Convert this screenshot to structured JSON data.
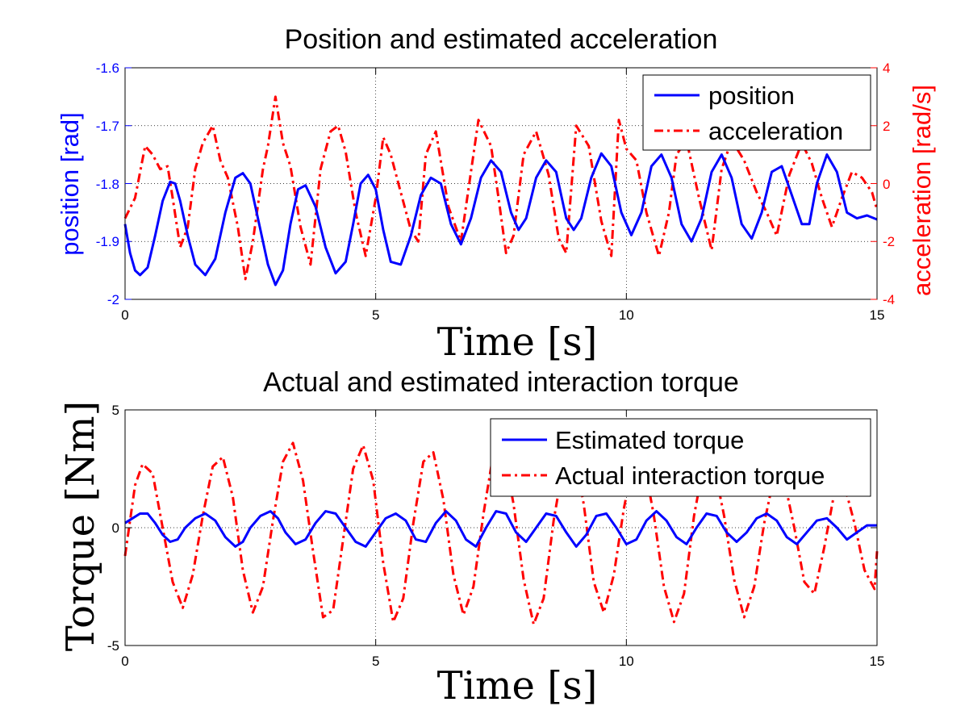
{
  "chart_data": [
    {
      "type": "line",
      "title": "Position and estimated acceleration",
      "xlabel": "Time [s]",
      "ylabel_left": "position [rad]",
      "ylabel_right": "acceleration [rad/s]",
      "xlim": [
        0,
        15
      ],
      "ylim_left": [
        -2,
        -1.6
      ],
      "ylim_right": [
        -4,
        4
      ],
      "xticks": [
        "0",
        "5",
        "10",
        "15"
      ],
      "yticks_left": [
        "-2",
        "-1.9",
        "-1.8",
        "-1.7",
        "-1.6"
      ],
      "yticks_right": [
        "-4",
        "-2",
        "0",
        "2",
        "4"
      ],
      "grid": true,
      "legend_position": "top-right",
      "series": [
        {
          "name": "position",
          "axis": "left",
          "color": "#0000ff",
          "style": "solid",
          "x": [
            0,
            0.1,
            0.2,
            0.3,
            0.45,
            0.6,
            0.75,
            0.9,
            1.0,
            1.1,
            1.25,
            1.4,
            1.6,
            1.8,
            2.0,
            2.2,
            2.35,
            2.5,
            2.7,
            2.85,
            3.0,
            3.15,
            3.3,
            3.45,
            3.6,
            3.8,
            4.0,
            4.2,
            4.4,
            4.55,
            4.7,
            4.85,
            5.0,
            5.15,
            5.3,
            5.5,
            5.7,
            5.9,
            6.1,
            6.3,
            6.5,
            6.7,
            6.9,
            7.1,
            7.3,
            7.5,
            7.7,
            7.85,
            8.0,
            8.2,
            8.4,
            8.6,
            8.8,
            8.95,
            9.1,
            9.3,
            9.5,
            9.7,
            9.9,
            10.1,
            10.3,
            10.5,
            10.7,
            10.9,
            11.1,
            11.3,
            11.5,
            11.7,
            11.9,
            12.1,
            12.3,
            12.5,
            12.7,
            12.9,
            13.1,
            13.3,
            13.5,
            13.65,
            13.8,
            14.0,
            14.2,
            14.4,
            14.6,
            14.8,
            15.0
          ],
          "y": [
            -1.87,
            -1.92,
            -1.95,
            -1.958,
            -1.945,
            -1.89,
            -1.83,
            -1.797,
            -1.8,
            -1.83,
            -1.89,
            -1.94,
            -1.958,
            -1.93,
            -1.85,
            -1.79,
            -1.782,
            -1.8,
            -1.88,
            -1.94,
            -1.975,
            -1.95,
            -1.87,
            -1.81,
            -1.803,
            -1.84,
            -1.91,
            -1.955,
            -1.935,
            -1.87,
            -1.8,
            -1.785,
            -1.81,
            -1.88,
            -1.935,
            -1.94,
            -1.89,
            -1.82,
            -1.79,
            -1.8,
            -1.87,
            -1.905,
            -1.86,
            -1.79,
            -1.76,
            -1.78,
            -1.85,
            -1.88,
            -1.86,
            -1.79,
            -1.76,
            -1.78,
            -1.86,
            -1.88,
            -1.86,
            -1.79,
            -1.748,
            -1.77,
            -1.85,
            -1.889,
            -1.85,
            -1.77,
            -1.75,
            -1.79,
            -1.87,
            -1.9,
            -1.86,
            -1.78,
            -1.75,
            -1.79,
            -1.87,
            -1.895,
            -1.85,
            -1.78,
            -1.77,
            -1.82,
            -1.87,
            -1.87,
            -1.8,
            -1.75,
            -1.78,
            -1.85,
            -1.86,
            -1.855,
            -1.862
          ]
        },
        {
          "name": "acceleration",
          "axis": "right",
          "color": "#ff0000",
          "style": "dash-dot",
          "x": [
            0,
            0.2,
            0.4,
            0.55,
            0.7,
            0.85,
            0.95,
            1.1,
            1.25,
            1.4,
            1.55,
            1.75,
            1.9,
            2.05,
            2.25,
            2.4,
            2.55,
            2.75,
            2.85,
            3.0,
            3.15,
            3.3,
            3.5,
            3.7,
            3.9,
            4.1,
            4.25,
            4.4,
            4.6,
            4.8,
            5.0,
            5.15,
            5.3,
            5.5,
            5.7,
            5.85,
            6.0,
            6.2,
            6.45,
            6.7,
            6.95,
            7.05,
            7.3,
            7.45,
            7.6,
            7.75,
            7.95,
            8.2,
            8.45,
            8.65,
            8.8,
            9.0,
            9.25,
            9.5,
            9.7,
            9.85,
            10.0,
            10.2,
            10.4,
            10.65,
            10.85,
            11.0,
            11.2,
            11.45,
            11.7,
            11.9,
            12.1,
            12.35,
            12.6,
            12.8,
            13.0,
            13.25,
            13.5,
            13.7,
            13.9,
            14.1,
            14.3,
            14.5,
            14.7,
            14.9,
            15.0
          ],
          "y": [
            -1.2,
            -0.5,
            1.3,
            1.0,
            0.5,
            0.6,
            -0.5,
            -2.2,
            -1.5,
            0.5,
            1.4,
            2.0,
            0.8,
            0.2,
            -1.5,
            -3.3,
            -2.0,
            0.5,
            1.3,
            3.0,
            1.4,
            0.6,
            -1.5,
            -2.8,
            0.5,
            1.8,
            2.0,
            1.1,
            -1.0,
            -2.5,
            -0.5,
            1.6,
            1.0,
            -0.3,
            -1.6,
            -2.0,
            1.0,
            1.8,
            -0.8,
            -2.0,
            1.0,
            2.2,
            1.3,
            -0.5,
            -2.4,
            -1.8,
            1.0,
            1.8,
            0.3,
            -1.9,
            -2.4,
            2.0,
            1.3,
            -1.3,
            -2.5,
            2.2,
            1.2,
            0.8,
            -1.0,
            -2.5,
            -1.0,
            1.0,
            1.5,
            -0.5,
            -2.3,
            0.5,
            1.5,
            0.8,
            -0.3,
            -1.0,
            -1.8,
            0.3,
            1.4,
            0.7,
            -0.5,
            -1.5,
            -0.5,
            0.4,
            0.2,
            -0.3,
            -0.9
          ]
        }
      ]
    },
    {
      "type": "line",
      "title": "Actual and estimated interaction torque",
      "xlabel": "Time [s]",
      "ylabel": "Torque [Nm]",
      "xlim": [
        0,
        15
      ],
      "ylim": [
        -5,
        5
      ],
      "xticks": [
        "0",
        "5",
        "10",
        "15"
      ],
      "yticks": [
        "-5",
        "0",
        "5"
      ],
      "grid": true,
      "legend_position": "top-right",
      "series": [
        {
          "name": "Estimated torque",
          "color": "#0000ff",
          "style": "solid",
          "x": [
            0,
            0.15,
            0.3,
            0.45,
            0.6,
            0.75,
            0.9,
            1.05,
            1.2,
            1.4,
            1.6,
            1.8,
            2.0,
            2.2,
            2.35,
            2.5,
            2.7,
            2.9,
            3.05,
            3.2,
            3.4,
            3.6,
            3.8,
            4.0,
            4.2,
            4.4,
            4.6,
            4.8,
            5.0,
            5.2,
            5.4,
            5.6,
            5.8,
            6.0,
            6.2,
            6.4,
            6.6,
            6.8,
            7.0,
            7.2,
            7.4,
            7.6,
            7.8,
            8.0,
            8.2,
            8.4,
            8.6,
            8.8,
            9.0,
            9.2,
            9.4,
            9.6,
            9.8,
            10.0,
            10.2,
            10.4,
            10.6,
            10.8,
            11.0,
            11.2,
            11.4,
            11.6,
            11.8,
            12.0,
            12.2,
            12.4,
            12.6,
            12.8,
            13.0,
            13.2,
            13.4,
            13.6,
            13.8,
            14.0,
            14.2,
            14.4,
            14.6,
            14.8,
            15.0
          ],
          "y": [
            0.2,
            0.4,
            0.6,
            0.6,
            0.2,
            -0.3,
            -0.6,
            -0.5,
            0.0,
            0.4,
            0.6,
            0.3,
            -0.4,
            -0.8,
            -0.6,
            0.0,
            0.5,
            0.7,
            0.4,
            -0.2,
            -0.7,
            -0.5,
            0.2,
            0.7,
            0.6,
            0.0,
            -0.6,
            -0.8,
            -0.2,
            0.4,
            0.6,
            0.3,
            -0.5,
            -0.6,
            0.2,
            0.7,
            0.3,
            -0.5,
            -0.8,
            0.0,
            0.7,
            0.6,
            -0.2,
            -0.6,
            0.0,
            0.6,
            0.5,
            -0.2,
            -0.8,
            -0.3,
            0.5,
            0.6,
            0.0,
            -0.7,
            -0.5,
            0.3,
            0.7,
            0.3,
            -0.4,
            -0.7,
            0.0,
            0.6,
            0.5,
            -0.2,
            -0.6,
            -0.2,
            0.4,
            0.6,
            0.3,
            -0.4,
            -0.7,
            -0.2,
            0.3,
            0.4,
            0.0,
            -0.5,
            -0.2,
            0.1,
            0.1
          ]
        },
        {
          "name": "Actual interaction torque",
          "color": "#ff0000",
          "style": "dash-dot",
          "x": [
            0,
            0.2,
            0.35,
            0.55,
            0.75,
            0.95,
            1.15,
            1.35,
            1.55,
            1.75,
            1.95,
            2.15,
            2.35,
            2.55,
            2.75,
            2.95,
            3.15,
            3.35,
            3.55,
            3.75,
            3.95,
            4.15,
            4.35,
            4.55,
            4.75,
            4.95,
            5.15,
            5.35,
            5.55,
            5.75,
            5.95,
            6.15,
            6.35,
            6.55,
            6.75,
            6.95,
            7.15,
            7.35,
            7.55,
            7.75,
            7.95,
            8.15,
            8.35,
            8.55,
            8.75,
            8.95,
            9.15,
            9.35,
            9.55,
            9.75,
            9.95,
            10.15,
            10.35,
            10.55,
            10.75,
            10.95,
            11.15,
            11.35,
            11.55,
            11.75,
            11.95,
            12.15,
            12.35,
            12.55,
            12.75,
            12.95,
            13.15,
            13.35,
            13.55,
            13.75,
            13.95,
            14.15,
            14.35,
            14.55,
            14.75,
            14.95,
            15.0
          ],
          "y": [
            -1.2,
            1.8,
            2.7,
            2.3,
            0.0,
            -2.3,
            -3.4,
            -2.0,
            0.5,
            2.6,
            3.0,
            1.3,
            -1.8,
            -3.6,
            -2.5,
            0.3,
            2.8,
            3.6,
            2.0,
            -1.0,
            -3.8,
            -3.5,
            -0.5,
            2.5,
            3.5,
            2.0,
            -1.5,
            -4.0,
            -3.0,
            0.2,
            2.8,
            3.2,
            1.2,
            -2.0,
            -3.7,
            -2.5,
            0.6,
            3.2,
            3.3,
            1.0,
            -2.2,
            -4.1,
            -3.0,
            0.3,
            2.8,
            3.2,
            1.0,
            -2.3,
            -3.6,
            -2.0,
            0.8,
            3.0,
            2.8,
            0.5,
            -2.5,
            -4.0,
            -2.8,
            0.5,
            2.8,
            2.6,
            0.5,
            -2.2,
            -3.8,
            -2.5,
            0.2,
            2.2,
            2.0,
            0.0,
            -2.3,
            -2.8,
            -0.8,
            1.5,
            1.8,
            0.2,
            -1.8,
            -2.6,
            -1.0
          ]
        }
      ]
    }
  ]
}
